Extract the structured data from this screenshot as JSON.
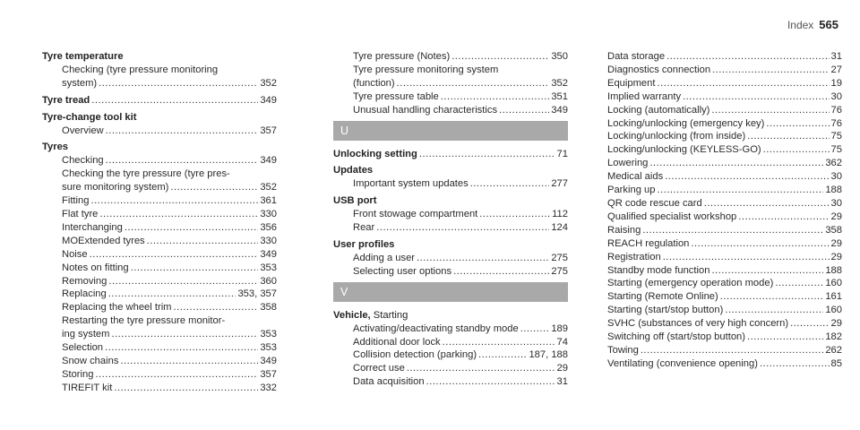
{
  "header": {
    "word": "Index",
    "page": "565"
  },
  "columns": [
    [
      {
        "kind": "head",
        "text": "Tyre temperature"
      },
      {
        "kind": "sub",
        "text": "Checking (tyre pressure monitoring"
      },
      {
        "kind": "cont",
        "text": "system)",
        "page": "352"
      },
      {
        "kind": "head",
        "text": "Tyre tread",
        "page": "349"
      },
      {
        "kind": "head",
        "text": "Tyre-change tool kit"
      },
      {
        "kind": "sub",
        "text": "Overview",
        "page": "357"
      },
      {
        "kind": "head",
        "text": "Tyres"
      },
      {
        "kind": "sub",
        "text": "Checking",
        "page": "349"
      },
      {
        "kind": "sub",
        "text": "Checking the tyre pressure (tyre pres-"
      },
      {
        "kind": "cont",
        "text": "sure monitoring system)",
        "page": "352"
      },
      {
        "kind": "sub",
        "text": "Fitting",
        "page": "361"
      },
      {
        "kind": "sub",
        "text": "Flat tyre",
        "page": "330"
      },
      {
        "kind": "sub",
        "text": "Interchanging",
        "page": "356"
      },
      {
        "kind": "sub",
        "text": "MOExtended tyres",
        "page": "330"
      },
      {
        "kind": "sub",
        "text": "Noise",
        "page": "349"
      },
      {
        "kind": "sub",
        "text": "Notes on fitting",
        "page": "353"
      },
      {
        "kind": "sub",
        "text": "Removing",
        "page": "360"
      },
      {
        "kind": "sub",
        "text": "Replacing",
        "page": "353, 357"
      },
      {
        "kind": "sub",
        "text": "Replacing the wheel trim",
        "page": "358"
      },
      {
        "kind": "sub",
        "text": "Restarting the tyre pressure monitor-"
      },
      {
        "kind": "cont",
        "text": "ing system",
        "page": "353"
      },
      {
        "kind": "sub",
        "text": "Selection",
        "page": "353"
      },
      {
        "kind": "sub",
        "text": "Snow chains",
        "page": "349"
      },
      {
        "kind": "sub",
        "text": "Storing",
        "page": "357"
      },
      {
        "kind": "sub",
        "text": "TIREFIT kit",
        "page": "332"
      }
    ],
    [
      {
        "kind": "sub",
        "text": "Tyre pressure (Notes)",
        "page": "350"
      },
      {
        "kind": "sub",
        "text": "Tyre pressure monitoring system"
      },
      {
        "kind": "cont",
        "text": "(function)",
        "page": "352"
      },
      {
        "kind": "sub",
        "text": "Tyre pressure table",
        "page": "351"
      },
      {
        "kind": "sub",
        "text": "Unusual handling characteristics",
        "page": "349"
      },
      {
        "kind": "letter",
        "text": "U"
      },
      {
        "kind": "head",
        "text": "Unlocking setting",
        "page": "71"
      },
      {
        "kind": "head",
        "text": "Updates"
      },
      {
        "kind": "sub",
        "text": "Important system updates",
        "page": "277"
      },
      {
        "kind": "head",
        "text": "USB port"
      },
      {
        "kind": "sub",
        "text": "Front stowage compartment",
        "page": "112"
      },
      {
        "kind": "sub",
        "text": "Rear",
        "page": "124"
      },
      {
        "kind": "head",
        "text": "User profiles"
      },
      {
        "kind": "sub",
        "text": "Adding a user",
        "page": "275"
      },
      {
        "kind": "sub",
        "text": "Selecting user options",
        "page": "275"
      },
      {
        "kind": "letter",
        "text": "V"
      },
      {
        "kind": "headmix",
        "text": "Vehicle,",
        "rest": " Starting"
      },
      {
        "kind": "sub",
        "text": "Activating/deactivating standby mode",
        "page": "189"
      },
      {
        "kind": "sub",
        "text": "Additional door lock",
        "page": "74"
      },
      {
        "kind": "sub",
        "text": "Collision detection (parking)",
        "page": "187, 188"
      },
      {
        "kind": "sub",
        "text": "Correct use",
        "page": "29"
      },
      {
        "kind": "sub",
        "text": "Data acquisition",
        "page": "31"
      }
    ],
    [
      {
        "kind": "plain",
        "text": "Data storage",
        "page": "31"
      },
      {
        "kind": "plain",
        "text": "Diagnostics connection",
        "page": "27"
      },
      {
        "kind": "plain",
        "text": "Equipment",
        "page": "19"
      },
      {
        "kind": "plain",
        "text": "Implied warranty",
        "page": "30"
      },
      {
        "kind": "plain",
        "text": "Locking (automatically)",
        "page": "76"
      },
      {
        "kind": "plain",
        "text": "Locking/unlocking (emergency key)",
        "page": "76"
      },
      {
        "kind": "plain",
        "text": "Locking/unlocking (from inside)",
        "page": "75"
      },
      {
        "kind": "plain",
        "text": "Locking/unlocking (KEYLESS-GO)",
        "page": "75"
      },
      {
        "kind": "plain",
        "text": "Lowering",
        "page": "362"
      },
      {
        "kind": "plain",
        "text": "Medical aids",
        "page": "30"
      },
      {
        "kind": "plain",
        "text": "Parking up",
        "page": "188"
      },
      {
        "kind": "plain",
        "text": "QR code rescue card",
        "page": "30"
      },
      {
        "kind": "plain",
        "text": "Qualified specialist workshop",
        "page": "29"
      },
      {
        "kind": "plain",
        "text": "Raising",
        "page": "358"
      },
      {
        "kind": "plain",
        "text": "REACH regulation",
        "page": "29"
      },
      {
        "kind": "plain",
        "text": "Registration",
        "page": "29"
      },
      {
        "kind": "plain",
        "text": "Standby mode function",
        "page": "188"
      },
      {
        "kind": "plain",
        "text": "Starting (emergency operation mode)",
        "page": "160"
      },
      {
        "kind": "plain",
        "text": "Starting (Remote Online)",
        "page": "161"
      },
      {
        "kind": "plain",
        "text": "Starting (start/stop button)",
        "page": "160"
      },
      {
        "kind": "plain",
        "text": "SVHC (substances of very high concern)",
        "page": "29"
      },
      {
        "kind": "plain",
        "text": "Switching off (start/stop button)",
        "page": "182"
      },
      {
        "kind": "plain",
        "text": "Towing",
        "page": "262"
      },
      {
        "kind": "plain",
        "text": "Ventilating (convenience opening)",
        "page": "85"
      }
    ]
  ]
}
